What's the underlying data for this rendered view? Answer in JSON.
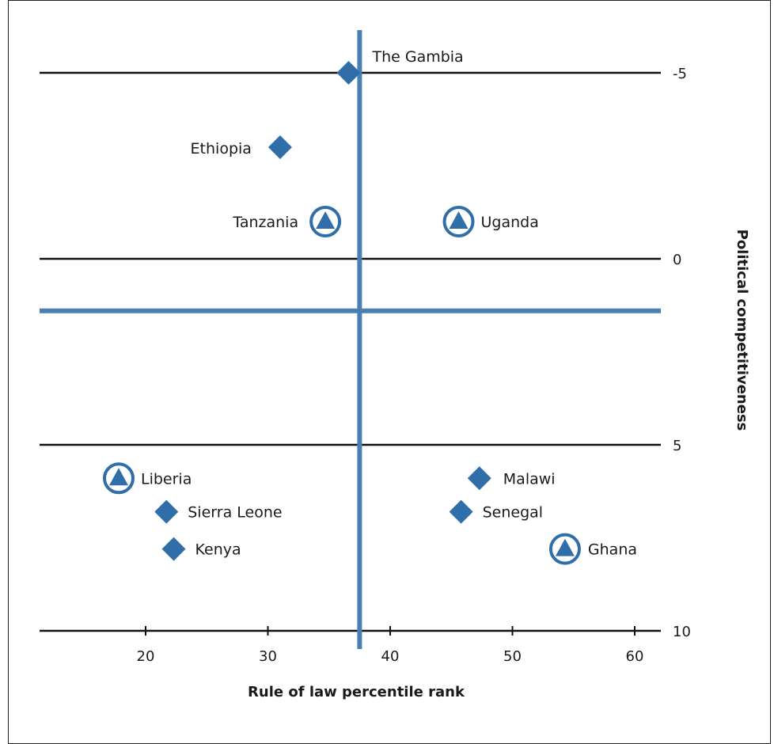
{
  "chart_data": {
    "type": "scatter",
    "xlabel": "Rule of law percentile rank",
    "ylabel": "Political competitiveness",
    "xlim": [
      11.5,
      62.5
    ],
    "ylim": [
      10,
      -6
    ],
    "x_ticks": [
      20,
      30,
      40,
      50,
      60
    ],
    "y_ticks": [
      -5,
      0,
      5,
      10
    ],
    "reference_lines": {
      "x": 37.5,
      "y": 1.4,
      "color": "#4a7fb3"
    },
    "marker_colors": {
      "fill": "#2f6ea8",
      "ring": "#2f6ea8"
    },
    "series": [
      {
        "marker": "diamond",
        "points": [
          {
            "label": "The Gambia",
            "x": 36.6,
            "y": -5.0
          },
          {
            "label": "Ethiopia",
            "x": 31.0,
            "y": -3.0
          },
          {
            "label": "Malawi",
            "x": 47.3,
            "y": 5.9
          },
          {
            "label": "Sierra Leone",
            "x": 21.7,
            "y": 6.8
          },
          {
            "label": "Senegal",
            "x": 45.8,
            "y": 6.8
          },
          {
            "label": "Kenya",
            "x": 22.3,
            "y": 7.8
          }
        ]
      },
      {
        "marker": "circled-triangle",
        "points": [
          {
            "label": "Tanzania",
            "x": 34.7,
            "y": -1.0
          },
          {
            "label": "Uganda",
            "x": 45.6,
            "y": -1.0
          },
          {
            "label": "Liberia",
            "x": 17.8,
            "y": 5.9
          },
          {
            "label": "Ghana",
            "x": 54.3,
            "y": 7.8
          }
        ]
      }
    ]
  }
}
